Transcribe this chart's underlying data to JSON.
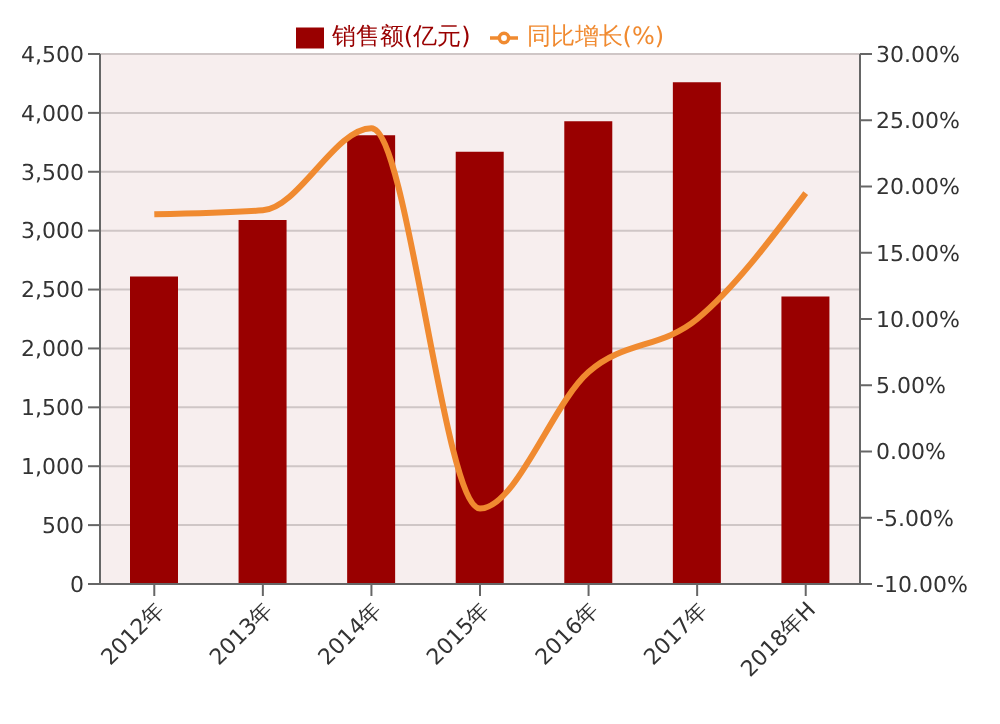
{
  "chart_data": {
    "type": "bar",
    "categories": [
      "2012年",
      "2013年",
      "2014年",
      "2015年",
      "2016年",
      "2017年",
      "2018年H"
    ],
    "series": [
      {
        "name": "销售额(亿元)",
        "color": "#990000",
        "values": [
          2610,
          3090,
          3810,
          3670,
          3930,
          4260,
          2440
        ]
      },
      {
        "name": "同比增长(%)",
        "type": "line",
        "axis": "y2",
        "color": "#f08a30",
        "values": [
          17.9,
          18.2,
          24.4,
          -4.3,
          6,
          10,
          19.5
        ]
      }
    ],
    "ylim": [
      0,
      4500
    ],
    "yticks": [
      0,
      {
        "value": 500,
        "label": "500"
      },
      {
        "value": 1000,
        "label": "1,000"
      },
      {
        "value": 1500,
        "label": "1,500"
      },
      {
        "value": 2000,
        "label": "2,000"
      },
      {
        "value": 2500,
        "label": "2,500"
      },
      {
        "value": 3000,
        "label": "3,000"
      },
      {
        "value": 3500,
        "label": "3,500"
      },
      {
        "value": 4000,
        "label": "4,000"
      },
      {
        "value": 4500,
        "label": "4,500"
      }
    ],
    "y2lim": [
      -10,
      30
    ],
    "y2ticks": [
      {
        "value": -10,
        "label": "-10.00%"
      },
      {
        "value": -5,
        "label": "-5.00%"
      },
      {
        "value": 0,
        "label": "0.00%"
      },
      {
        "value": 5,
        "label": "5.00%"
      },
      {
        "value": 10,
        "label": "10.00%"
      },
      {
        "value": 15,
        "label": "15.00%"
      },
      {
        "value": 20,
        "label": "20.00%"
      },
      {
        "value": 25,
        "label": "25.00%"
      },
      {
        "value": 30,
        "label": "30.00%"
      }
    ],
    "grid": "y",
    "legend": "top",
    "marker": "none"
  }
}
